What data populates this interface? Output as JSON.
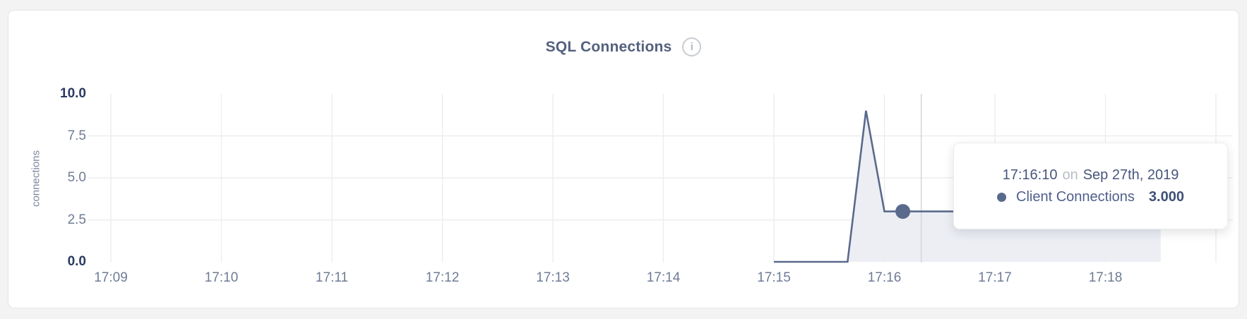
{
  "card": {
    "title": "SQL Connections",
    "info_icon_glyph": "i"
  },
  "y_axis_title": "connections",
  "tooltip": {
    "time": "17:16:10",
    "connector": "on",
    "date": "Sep 27th, 2019",
    "series_label": "Client Connections",
    "value": "3.000"
  },
  "chart_data": {
    "type": "area",
    "title": "SQL Connections",
    "xlabel": "",
    "ylabel": "connections",
    "ylim": [
      0,
      10
    ],
    "grid": true,
    "legend_position": "none",
    "y_ticks": [
      {
        "label": "0.0",
        "value": 0,
        "strong": true
      },
      {
        "label": "2.5",
        "value": 2.5,
        "strong": false
      },
      {
        "label": "5.0",
        "value": 5,
        "strong": false
      },
      {
        "label": "7.5",
        "value": 7.5,
        "strong": false
      },
      {
        "label": "10.0",
        "value": 10,
        "strong": true
      }
    ],
    "x_ticks": [
      {
        "label": "17:09",
        "time": "17:09:00"
      },
      {
        "label": "17:10",
        "time": "17:10:00"
      },
      {
        "label": "17:11",
        "time": "17:11:00"
      },
      {
        "label": "17:12",
        "time": "17:12:00"
      },
      {
        "label": "17:13",
        "time": "17:13:00"
      },
      {
        "label": "17:14",
        "time": "17:14:00"
      },
      {
        "label": "17:15",
        "time": "17:15:00"
      },
      {
        "label": "17:16",
        "time": "17:16:00"
      },
      {
        "label": "17:17",
        "time": "17:17:00"
      },
      {
        "label": "17:18",
        "time": "17:18:00"
      },
      {
        "label": "",
        "time": "17:19:00"
      }
    ],
    "series": [
      {
        "name": "Client Connections",
        "color": "#5a6a8c",
        "fill": "#eceef4",
        "points": [
          {
            "time": "17:15:00",
            "value": 0
          },
          {
            "time": "17:15:40",
            "value": 0
          },
          {
            "time": "17:15:50",
            "value": 9
          },
          {
            "time": "17:16:00",
            "value": 3
          },
          {
            "time": "17:16:10",
            "value": 3
          },
          {
            "time": "17:18:30",
            "value": 3
          }
        ]
      }
    ],
    "hover": {
      "point_time": "17:16:10",
      "point_value": 3,
      "point_value_label": "3.000",
      "crosshair_time": "17:16:20",
      "date": "Sep 27th, 2019"
    }
  },
  "colors": {
    "page_bg": "#f3f3f4",
    "card_bg": "#ffffff",
    "card_border": "#e5e5e7",
    "title_text": "#53617e",
    "line": "#5a6a8c",
    "area_fill": "#eceef4",
    "gridline": "#ededed",
    "crosshair": "#d4d7dc",
    "tick_strong": "#2a3a61",
    "tick_regular": "#6f7b95",
    "tooltip_text": "#47567a",
    "tooltip_muted": "#b9bdc5"
  }
}
